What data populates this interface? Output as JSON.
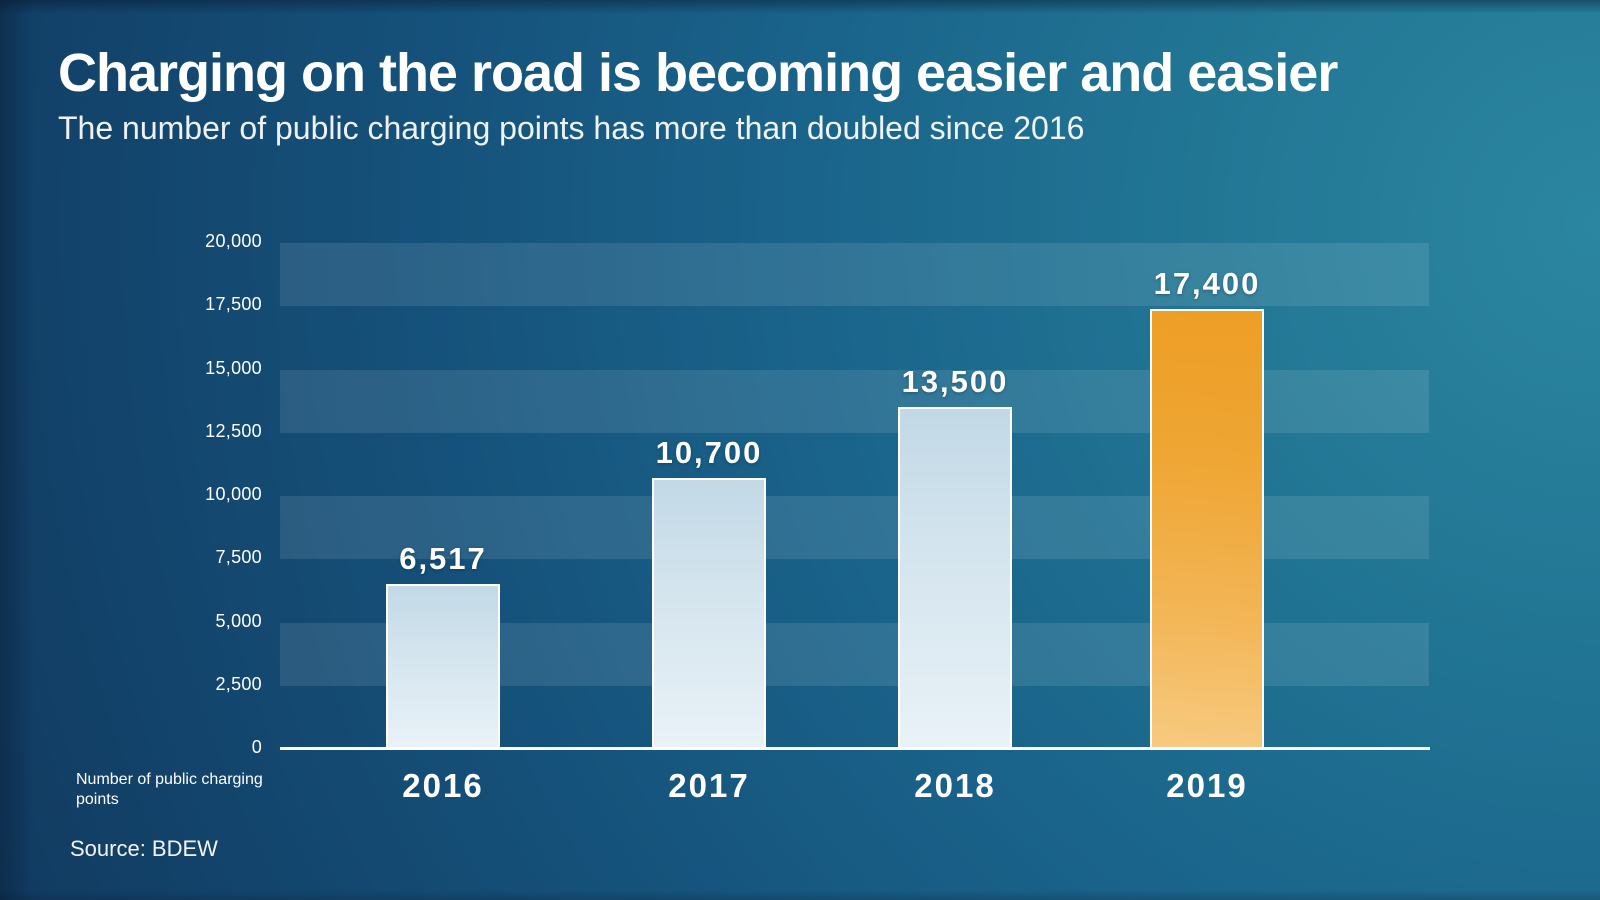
{
  "header": {
    "title": "Charging on the road is becoming easier and easier",
    "subtitle": "The number of public charging points has more than doubled since 2016"
  },
  "footer": {
    "source": "Source: BDEW"
  },
  "chart_data": {
    "type": "bar",
    "title": "Charging on the road is becoming easier and easier",
    "subtitle": "The number of public charging points has more than doubled since 2016",
    "categories": [
      "2016",
      "2017",
      "2018",
      "2019"
    ],
    "values": [
      6517,
      10700,
      13500,
      17400
    ],
    "value_labels": [
      "6,517",
      "10,700",
      "13,500",
      "17,400"
    ],
    "xlabel": "",
    "ylabel": "Number of public charging points",
    "ylim": [
      0,
      20000
    ],
    "yticks": [
      0,
      2500,
      5000,
      7500,
      10000,
      12500,
      15000,
      17500,
      20000
    ],
    "ytick_labels": [
      "0",
      "2,500",
      "5,000",
      "7,500",
      "10,000",
      "12,500",
      "15,000",
      "17,500",
      "20,000"
    ],
    "grid": "horizontal striped bands every 2,500 units",
    "legend": "none",
    "source": "Source: BDEW",
    "highlight": {
      "index": 3,
      "category": "2019"
    },
    "colors": {
      "background_dark": "#113a60",
      "background_teal": "#227795",
      "band_overlay": "rgba(255,255,255,0.10)",
      "bar_fill": "#d9e8f0",
      "highlight_fill": "#f0a62f",
      "axis_line": "#ffffff",
      "text": "#ffffff"
    }
  }
}
